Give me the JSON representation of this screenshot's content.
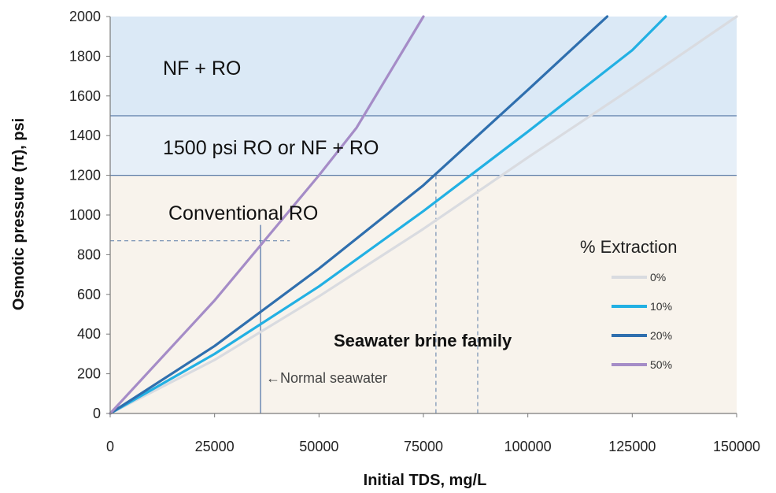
{
  "chart_data": {
    "type": "line",
    "xlabel": "Initial TDS, mg/L",
    "ylabel": "Osmotic pressure (π), psi",
    "xlim": [
      0,
      150000
    ],
    "ylim": [
      0,
      2000
    ],
    "x_ticks": [
      0,
      25000,
      50000,
      75000,
      100000,
      125000,
      150000
    ],
    "y_ticks": [
      0,
      200,
      400,
      600,
      800,
      1000,
      1200,
      1400,
      1600,
      1800,
      2000
    ],
    "x_tick_labels": [
      "0",
      "25000",
      "50000",
      "75000",
      "100000",
      "125000",
      "150000"
    ],
    "y_tick_labels": [
      "0",
      "200",
      "400",
      "600",
      "800",
      "1000",
      "1200",
      "1400",
      "1600",
      "1800",
      "2000"
    ],
    "grid": false,
    "legend": {
      "title": "% Extraction",
      "position": "right"
    },
    "series": [
      {
        "name": "0%",
        "color": "#d9dbe0",
        "x": [
          0,
          25000,
          50000,
          75000,
          100000,
          125000,
          150000
        ],
        "y": [
          0,
          270,
          590,
          930,
          1290,
          1640,
          2000
        ]
      },
      {
        "name": "10%",
        "color": "#22b0e3",
        "x": [
          0,
          25000,
          50000,
          75000,
          100000,
          125000,
          133000
        ],
        "y": [
          0,
          300,
          640,
          1020,
          1420,
          1830,
          2000
        ]
      },
      {
        "name": "20%",
        "color": "#2f6fae",
        "x": [
          0,
          25000,
          50000,
          75000,
          100000,
          119000
        ],
        "y": [
          0,
          340,
          730,
          1150,
          1630,
          2000
        ]
      },
      {
        "name": "50%",
        "color": "#a58cc7",
        "x": [
          0,
          25000,
          50000,
          59000,
          75000
        ],
        "y": [
          0,
          570,
          1200,
          1440,
          2000
        ]
      }
    ],
    "regions": [
      {
        "label": "NF + RO",
        "y_from": 1500,
        "y_to": 2000,
        "color": "#dbe9f6"
      },
      {
        "label": "1500 psi RO or NF + RO",
        "y_from": 1200,
        "y_to": 1500,
        "color": "#e6eff8"
      },
      {
        "label": "Conventional RO",
        "y_from": 0,
        "y_to": 1200,
        "color": "#f8f3ec"
      }
    ],
    "annotations": {
      "normal_seawater": "←Normal seawater",
      "brine_family": "Seawater brine family"
    },
    "reference_lines": {
      "normal_seawater_tds": 36000,
      "normal_seawater_pressure": 870,
      "brine_20pct_tds": 78000,
      "brine_10pct_tds": 88000
    },
    "colors": {
      "threshold_line": "#5b7ca8",
      "axis": "#7a7a7a"
    }
  }
}
